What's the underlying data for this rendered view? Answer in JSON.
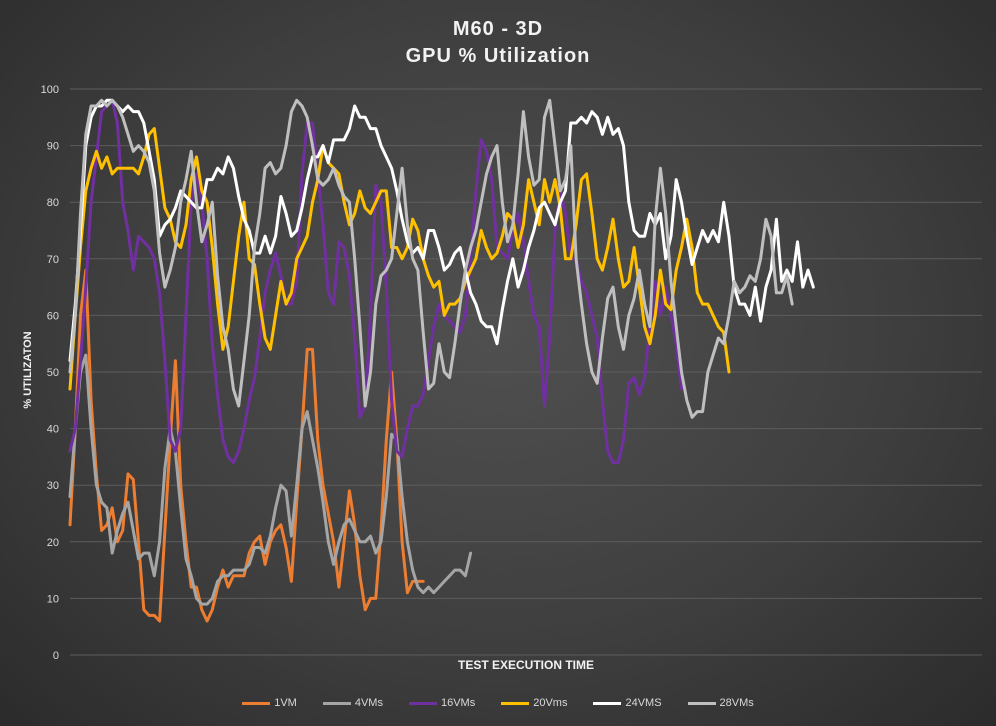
{
  "chart_data": {
    "type": "line",
    "title": "M60 - 3D",
    "subtitle": "GPU % Utilization",
    "xlabel": "TEST EXECUTION TIME",
    "ylabel": "% UTILIZATON",
    "ylim": [
      0,
      100
    ],
    "yticks": [
      "0",
      "10",
      "20",
      "30",
      "40",
      "50",
      "60",
      "70",
      "80",
      "90",
      "100"
    ],
    "grid": true,
    "legend_position": "bottom",
    "xmax": 173,
    "series": [
      {
        "name": "1VM",
        "color": "#ed7d31",
        "values": [
          23,
          40,
          60,
          68,
          45,
          32,
          22,
          23,
          26,
          20,
          22,
          32,
          31,
          20,
          8,
          7,
          7,
          6,
          22,
          38,
          52,
          30,
          20,
          12,
          12,
          8,
          6,
          8,
          12,
          15,
          12,
          14,
          14,
          14,
          18,
          20,
          21,
          16,
          20,
          22,
          23,
          19,
          13,
          27,
          40,
          54,
          54,
          38,
          30,
          25,
          20,
          12,
          20,
          29,
          23,
          14,
          8,
          10,
          10,
          22,
          38,
          50,
          38,
          20,
          11,
          13,
          13,
          13
        ]
      },
      {
        "name": "4VMs",
        "color": "#a5a5a5",
        "values": [
          28,
          40,
          50,
          53,
          40,
          30,
          27,
          26,
          18,
          22,
          25,
          27,
          22,
          17,
          18,
          18,
          14,
          20,
          33,
          40,
          36,
          26,
          17,
          14,
          10,
          9,
          9,
          10,
          13,
          14,
          14,
          15,
          15,
          15,
          16,
          19,
          19,
          18,
          21,
          26,
          30,
          29,
          21,
          30,
          40,
          43,
          38,
          33,
          27,
          20,
          16,
          20,
          23,
          24,
          22,
          20,
          20,
          21,
          18,
          20,
          28,
          39,
          38,
          28,
          20,
          15,
          12,
          11,
          12,
          11,
          12,
          13,
          14,
          15,
          15,
          14,
          18
        ]
      },
      {
        "name": "16VMs",
        "color": "#7030a0",
        "values": [
          36,
          40,
          52,
          65,
          80,
          88,
          96,
          97,
          98,
          94,
          80,
          75,
          68,
          74,
          73,
          72,
          70,
          64,
          52,
          38,
          36,
          40,
          60,
          80,
          85,
          80,
          70,
          55,
          46,
          38,
          35,
          34,
          36,
          40,
          45,
          49,
          56,
          64,
          68,
          71,
          67,
          62,
          62,
          66,
          85,
          94,
          94,
          85,
          76,
          64,
          62,
          73,
          72,
          67,
          56,
          42,
          44,
          60,
          83,
          80,
          65,
          45,
          36,
          35,
          40,
          44,
          44,
          46,
          52,
          58,
          62,
          60,
          59,
          58,
          57,
          60,
          70,
          82,
          91,
          89,
          84,
          72,
          71,
          70,
          75,
          78,
          73,
          66,
          60,
          58,
          44,
          56,
          75,
          82,
          78,
          70,
          70,
          66,
          64,
          60,
          56,
          45,
          36,
          34,
          34,
          38,
          48,
          49,
          46,
          49,
          58,
          66,
          60,
          65,
          60,
          55,
          47
        ]
      },
      {
        "name": "20Vms",
        "color": "#ffc000",
        "values": [
          47,
          60,
          72,
          82,
          86,
          89,
          86,
          88,
          85,
          86,
          86,
          86,
          86,
          85,
          88,
          92,
          93,
          86,
          79,
          77,
          73,
          72,
          76,
          84,
          88,
          82,
          80,
          72,
          62,
          54,
          58,
          66,
          74,
          80,
          70,
          69,
          62,
          56,
          54,
          60,
          66,
          62,
          64,
          70,
          72,
          74,
          80,
          84,
          90,
          87,
          86,
          85,
          80,
          76,
          78,
          82,
          79,
          78,
          80,
          82,
          82,
          72,
          72,
          70,
          72,
          77,
          75,
          70,
          67,
          65,
          66,
          60,
          62,
          62,
          63,
          66,
          68,
          70,
          75,
          72,
          70,
          71,
          74,
          78,
          77,
          72,
          76,
          84,
          80,
          76,
          84,
          80,
          84,
          79,
          70,
          70,
          76,
          84,
          85,
          78,
          70,
          68,
          72,
          77,
          70,
          65,
          66,
          72,
          65,
          58,
          55,
          60,
          68,
          62,
          61,
          68,
          72,
          77,
          72,
          64,
          62,
          62,
          60,
          58,
          57,
          50
        ]
      },
      {
        "name": "24VMS",
        "color": "#ffffff",
        "values": [
          52,
          62,
          75,
          90,
          95,
          97,
          97,
          98,
          98,
          97,
          96,
          97,
          96,
          96,
          94,
          89,
          84,
          74,
          76,
          77,
          79,
          82,
          81,
          80,
          79,
          79,
          84,
          84,
          86,
          85,
          88,
          86,
          81,
          77,
          75,
          71,
          71,
          74,
          71,
          74,
          81,
          78,
          74,
          75,
          79,
          84,
          88,
          88,
          90,
          87,
          91,
          91,
          91,
          93,
          97,
          95,
          95,
          93,
          93,
          90,
          88,
          86,
          82,
          77,
          73,
          71,
          72,
          70,
          75,
          75,
          72,
          68,
          69,
          71,
          72,
          68,
          64,
          62,
          59,
          58,
          58,
          55,
          61,
          66,
          70,
          65,
          68,
          72,
          75,
          79,
          80,
          78,
          76,
          80,
          82,
          94,
          94,
          95,
          94,
          96,
          95,
          92,
          95,
          92,
          93,
          90,
          80,
          75,
          74,
          74,
          78,
          76,
          78,
          70,
          74,
          84,
          80,
          74,
          69,
          72,
          75,
          73,
          75,
          73,
          80,
          74,
          65,
          62,
          62,
          60,
          65,
          59,
          65,
          68,
          77,
          66,
          68,
          66,
          73,
          65,
          68,
          65
        ]
      },
      {
        "name": "28VMs",
        "color": "#bfbfbf",
        "values": [
          50,
          60,
          78,
          92,
          97,
          97,
          98,
          97,
          98,
          97,
          95,
          92,
          89,
          90,
          89,
          87,
          82,
          71,
          65,
          68,
          72,
          80,
          84,
          89,
          80,
          73,
          76,
          80,
          67,
          58,
          54,
          47,
          44,
          52,
          60,
          72,
          78,
          86,
          87,
          85,
          86,
          90,
          96,
          98,
          97,
          95,
          90,
          84,
          83,
          84,
          86,
          83,
          81,
          80,
          70,
          58,
          44,
          50,
          62,
          67,
          68,
          70,
          78,
          86,
          76,
          70,
          68,
          57,
          47,
          48,
          55,
          50,
          49,
          55,
          62,
          68,
          72,
          75,
          80,
          85,
          88,
          90,
          80,
          73,
          76,
          85,
          96,
          88,
          83,
          84,
          95,
          98,
          90,
          82,
          84,
          90,
          70,
          62,
          55,
          50,
          48,
          56,
          63,
          65,
          58,
          54,
          60,
          63,
          68,
          62,
          58,
          77,
          86,
          78,
          66,
          58,
          50,
          45,
          42,
          43,
          43,
          50,
          53,
          56,
          55,
          60,
          66,
          64,
          65,
          67,
          66,
          70,
          77,
          74,
          64,
          64,
          67,
          62
        ]
      }
    ]
  }
}
